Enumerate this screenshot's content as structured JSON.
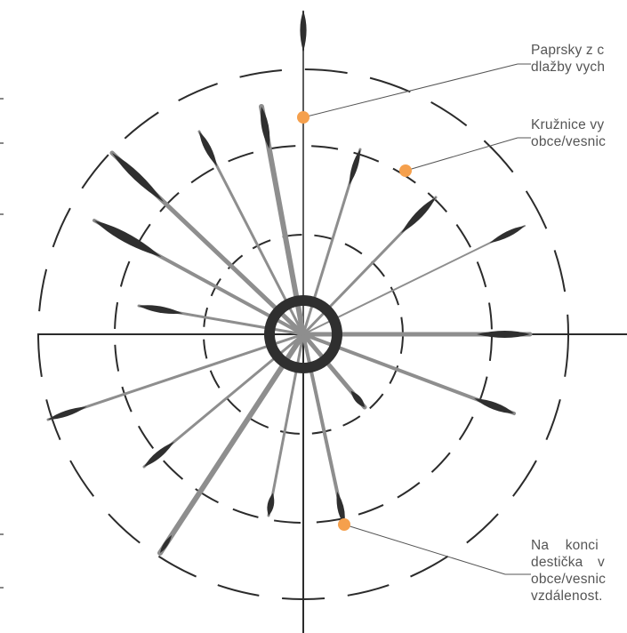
{
  "callouts": [
    {
      "id": "rays",
      "lines": [
        "Paprsky z c",
        "dlažby vych"
      ]
    },
    {
      "id": "circles",
      "lines": [
        "Kružnice vy",
        "obce/vesnic"
      ]
    },
    {
      "id": "plate",
      "lines": [
        "Na konci",
        "destička v",
        "obce/vesnic",
        "vzdálenost."
      ]
    }
  ],
  "colors": {
    "ray_light": "#8e8e8e",
    "ray_dark": "#2f2f2f",
    "circle": "#2b2b2b",
    "marker": "#f5a04d",
    "callout_text": "#555555",
    "axis": "#2b2b2b"
  }
}
